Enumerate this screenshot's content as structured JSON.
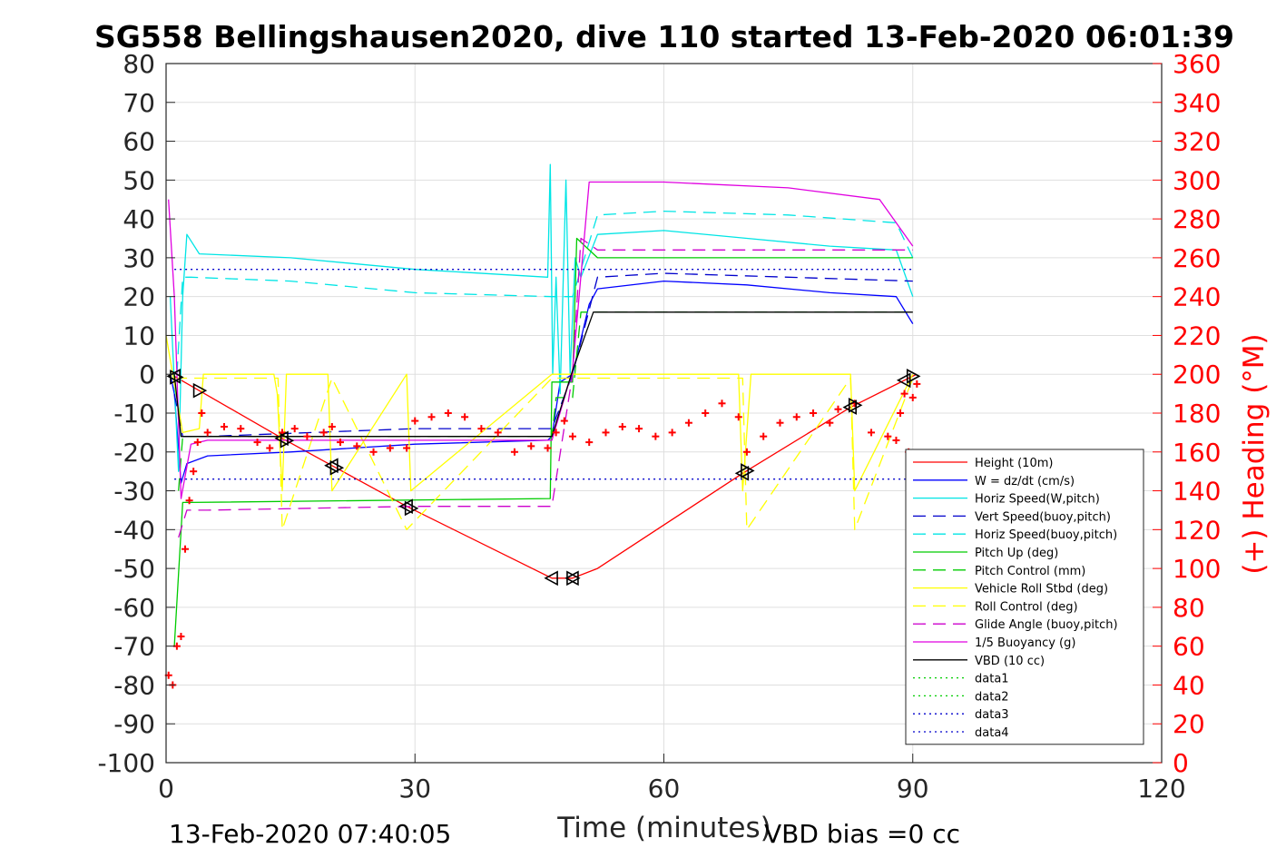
{
  "chart_data": {
    "type": "line",
    "title": "SG558 Bellingshausen2020, dive 110 started 13-Feb-2020 06:01:39",
    "xlabel": "Time (minutes)",
    "ylabel": "",
    "ylabel_right": "(+) Heading (°M)",
    "xlim": [
      0,
      120
    ],
    "ylim": [
      -100,
      80
    ],
    "ylim_right": [
      0,
      360
    ],
    "x_ticks": [
      "0",
      "30",
      "60",
      "90",
      "120"
    ],
    "y_ticks": [
      "80",
      "70",
      "60",
      "50",
      "40",
      "30",
      "20",
      "10",
      "0",
      "-10",
      "-20",
      "-30",
      "-40",
      "-50",
      "-60",
      "-70",
      "-80",
      "-90",
      "-100"
    ],
    "y_right_ticks": [
      "360",
      "340",
      "320",
      "300",
      "280",
      "260",
      "240",
      "220",
      "200",
      "180",
      "160",
      "140",
      "120",
      "100",
      "80",
      "60",
      "40",
      "20",
      "0"
    ],
    "grid": true,
    "legend_position": "lower-right",
    "footer_left": "13-Feb-2020 07:40:05",
    "footer_right": "VBD bias =0 cc",
    "series": [
      {
        "name": "Height (10m)",
        "color": "#ff0000",
        "style": "solid",
        "x": [
          1,
          14,
          20,
          29,
          46.5,
          49,
          52,
          69.5,
          82.5,
          89.5,
          90.5
        ],
        "y": [
          -0.5,
          -16.5,
          -23.5,
          -34,
          -52.5,
          -52.5,
          -50,
          -25.5,
          -8.5,
          -1,
          0
        ]
      },
      {
        "name": "W = dz/dt (cm/s)",
        "color": "#0000ff",
        "style": "solid",
        "x": [
          0.5,
          1,
          1.8,
          2.5,
          5,
          15,
          30,
          46,
          46.5,
          47.5,
          49,
          51,
          52,
          60,
          70,
          80,
          88,
          90
        ],
        "y": [
          0,
          -5,
          -28,
          -23,
          -21,
          -20,
          -18,
          -17,
          -16,
          -2,
          0,
          18,
          22,
          24,
          23,
          21,
          20,
          13
        ]
      },
      {
        "name": "Horiz Speed(W,pitch)",
        "color": "#00e5e5",
        "style": "solid",
        "x": [
          0.5,
          1.5,
          2,
          2.5,
          4,
          15,
          30,
          46,
          46.3,
          46.6,
          47,
          47.5,
          48.2,
          48.7,
          49.3,
          50,
          52,
          60,
          70,
          80,
          88,
          90
        ],
        "y": [
          20,
          -25,
          20,
          36,
          31,
          30,
          27,
          25,
          54,
          0,
          25,
          -5,
          50,
          0,
          30,
          25,
          36,
          37,
          35,
          33,
          32,
          20
        ]
      },
      {
        "name": "Vert Speed(buoy,pitch)",
        "color": "#0000cc",
        "style": "dashed",
        "x": [
          1,
          2,
          5,
          30,
          46.5,
          49,
          52,
          60,
          90
        ],
        "y": [
          -5,
          -16,
          -16,
          -14,
          -14,
          0,
          25,
          26,
          24
        ]
      },
      {
        "name": "Horiz Speed(buoy,pitch)",
        "color": "#00e5e5",
        "style": "dashed",
        "x": [
          1.3,
          2,
          3,
          15,
          30,
          46.5,
          49,
          52,
          60,
          75,
          88,
          90
        ],
        "y": [
          0,
          25,
          25,
          24,
          21,
          20,
          20,
          41,
          42,
          41,
          39,
          30
        ]
      },
      {
        "name": "Pitch Up (deg)",
        "color": "#00cc00",
        "style": "solid",
        "x": [
          1,
          2,
          3,
          46.3,
          46.5,
          49,
          49.5,
          52,
          90
        ],
        "y": [
          -70,
          -33,
          -33,
          -32,
          -2,
          -2,
          35,
          30,
          30
        ]
      },
      {
        "name": "Pitch Control (mm)",
        "color": "#00cc00",
        "style": "dashed",
        "x": [
          1.5,
          2,
          46.5,
          47,
          49,
          50,
          52,
          90
        ],
        "y": [
          -30,
          -16,
          -16,
          -6,
          -6,
          16,
          16,
          16
        ]
      },
      {
        "name": "Vehicle Roll Stbd (deg)",
        "color": "#ffff00",
        "style": "solid",
        "x": [
          0,
          2,
          4,
          4.5,
          13,
          13.4,
          14,
          14.5,
          19.5,
          20,
          29,
          29.5,
          46.5,
          50,
          69,
          69.5,
          70.5,
          82.5,
          83,
          90
        ],
        "y": [
          10,
          -15,
          -14,
          0,
          0,
          -5,
          -30,
          0,
          0,
          -30,
          0,
          -30,
          0,
          0,
          0,
          -30,
          0,
          0,
          -30,
          0
        ]
      },
      {
        "name": "Roll Control (deg)",
        "color": "#ffff00",
        "style": "dashed",
        "x": [
          1,
          2,
          4.5,
          13.5,
          14,
          20,
          29,
          46.5,
          69.5,
          70,
          82.5,
          83,
          90
        ],
        "y": [
          -1,
          -1,
          -1,
          -1,
          -40,
          -1,
          -40,
          -1,
          -1,
          -40,
          -1,
          -40,
          -1
        ]
      },
      {
        "name": "Glide Angle (buoy,pitch)",
        "color": "#cc00cc",
        "style": "dashed",
        "x": [
          1.5,
          2.5,
          5,
          30,
          46.5,
          49,
          50,
          52,
          90
        ],
        "y": [
          -42,
          -35,
          -35,
          -34,
          -34,
          0,
          35,
          32,
          32
        ]
      },
      {
        "name": "1/5 Buoyancy (g)",
        "color": "#e000e0",
        "style": "solid",
        "x": [
          0.3,
          1,
          1.8,
          3,
          5,
          30,
          46.5,
          49,
          51,
          60,
          75,
          86,
          88,
          90
        ],
        "y": [
          45,
          20,
          -32,
          -18,
          -17,
          -17,
          -17,
          1,
          49.5,
          49.5,
          48,
          45,
          39,
          33
        ]
      },
      {
        "name": "VBD (10 cc)",
        "color": "#000000",
        "style": "solid",
        "x": [
          1,
          1.8,
          3,
          46.5,
          49,
          51.5,
          88,
          90
        ],
        "y": [
          0,
          -16,
          -16,
          -16,
          1,
          16,
          16,
          16
        ]
      },
      {
        "name": "data1",
        "color": "#00cc00",
        "style": "dotted",
        "x": [],
        "y": []
      },
      {
        "name": "data2",
        "color": "#00cc00",
        "style": "dotted",
        "x": [],
        "y": []
      },
      {
        "name": "data3",
        "color": "#0000cc",
        "style": "dotted",
        "x": [
          1,
          46.5,
          49,
          90
        ],
        "y": [
          27,
          27,
          27,
          27
        ]
      },
      {
        "name": "data4",
        "color": "#0000cc",
        "style": "dotted",
        "x": [
          1,
          46.5,
          49,
          90
        ],
        "y": [
          -27,
          -27,
          -27,
          -27
        ]
      }
    ],
    "heading_series": {
      "color": "#ff0000",
      "marker": "+",
      "x": [
        0.3,
        0.8,
        1.3,
        1.8,
        2.3,
        2.8,
        3.3,
        3.8,
        4.3,
        5,
        7,
        9,
        11,
        12.5,
        14,
        15.5,
        17,
        19,
        20,
        21,
        23,
        25,
        27,
        29,
        30,
        32,
        34,
        36,
        38,
        40,
        42,
        44,
        46,
        47,
        48,
        49,
        51,
        53,
        55,
        57,
        59,
        61,
        63,
        65,
        67,
        69,
        70,
        72,
        74,
        76,
        78,
        80,
        81,
        83,
        85,
        87,
        88,
        88.5,
        89,
        89.5,
        90,
        90.5
      ],
      "y": [
        45,
        40,
        60,
        65,
        110,
        135,
        150,
        165,
        180,
        170,
        173,
        172,
        165,
        162,
        170,
        172,
        168,
        170,
        173,
        165,
        163,
        160,
        162,
        162,
        176,
        178,
        180,
        178,
        172,
        170,
        160,
        163,
        162,
        170,
        176,
        168,
        165,
        170,
        173,
        172,
        168,
        170,
        175,
        180,
        185,
        178,
        160,
        168,
        175,
        178,
        180,
        175,
        182,
        185,
        170,
        168,
        166,
        180,
        190,
        160,
        188,
        195
      ]
    },
    "annotations": [
      {
        "label": "",
        "marker": "triangle-left",
        "x": [
          1,
          14,
          20,
          29,
          46.5,
          49,
          69.5,
          82.5,
          89
        ]
      },
      {
        "label": "",
        "marker": "triangle-right",
        "x": [
          1.2,
          4,
          14.5,
          20.5,
          29.5,
          49,
          70,
          83,
          90
        ]
      }
    ]
  }
}
